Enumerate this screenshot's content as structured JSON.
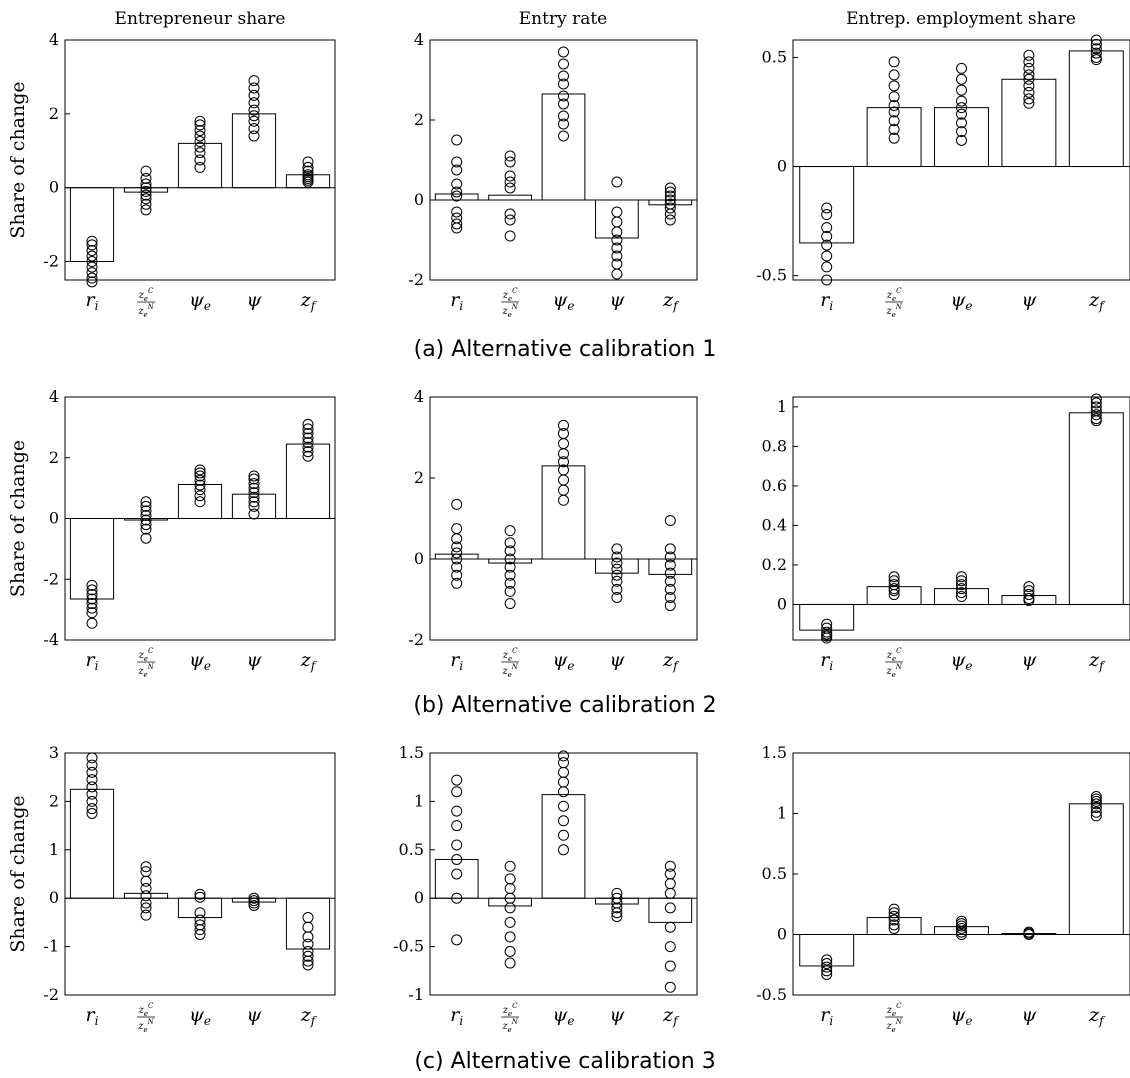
{
  "figure": {
    "column_titles": [
      "Entrepreneur share",
      "Entry rate",
      "Entrep. employment share"
    ],
    "ylabel": "Share of change",
    "captions": [
      "(a) Alternative calibration 1",
      "(b) Alternative calibration 2",
      "(c) Alternative calibration 3"
    ],
    "category_parts": [
      {
        "base": "r",
        "sub": "i"
      },
      {
        "num_base": "z",
        "num_sub": "e",
        "num_sup": "C",
        "den_base": "z",
        "den_sub": "e",
        "den_sup": "N"
      },
      {
        "base": "ψ",
        "sub": "e"
      },
      {
        "base": "ψ",
        "sub": ""
      },
      {
        "base": "z",
        "sub": "f"
      }
    ]
  },
  "chart_data": [
    {
      "type": "bar",
      "row": 0,
      "col": 0,
      "title": "Entrepreneur share",
      "ylabel": "Share of change",
      "categories": [
        "r_i",
        "z_e^C/z_e^N",
        "ψ_e",
        "ψ",
        "z_f"
      ],
      "values": [
        -2.0,
        -0.12,
        1.2,
        2.0,
        0.35
      ],
      "ylim": [
        -2.5,
        4
      ],
      "yticks": [
        -2,
        0,
        2,
        4
      ],
      "ytick_labels": [
        "-2",
        "0",
        "2",
        "4"
      ],
      "points": [
        [
          -1.45,
          -1.55,
          -1.7,
          -1.85,
          -2.0,
          -2.15,
          -2.3,
          -2.45,
          -2.55
        ],
        [
          0.45,
          0.25,
          0.1,
          0.0,
          -0.1,
          -0.2,
          -0.3,
          -0.45,
          -0.6
        ],
        [
          1.8,
          1.7,
          1.55,
          1.4,
          1.25,
          1.1,
          0.95,
          0.75,
          0.55
        ],
        [
          2.9,
          2.7,
          2.5,
          2.3,
          2.1,
          1.95,
          1.8,
          1.6,
          1.4
        ],
        [
          0.7,
          0.55,
          0.45,
          0.35,
          0.3,
          0.25,
          0.2,
          0.15
        ]
      ]
    },
    {
      "type": "bar",
      "row": 0,
      "col": 1,
      "title": "Entry rate",
      "ylabel": "",
      "categories": [
        "r_i",
        "z_e^C/z_e^N",
        "ψ_e",
        "ψ",
        "z_f"
      ],
      "values": [
        0.15,
        0.12,
        2.65,
        -0.95,
        -0.12
      ],
      "ylim": [
        -2,
        4
      ],
      "yticks": [
        -2,
        0,
        2,
        4
      ],
      "ytick_labels": [
        "-2",
        "0",
        "2",
        "4"
      ],
      "points": [
        [
          1.5,
          0.95,
          0.75,
          0.4,
          0.2,
          0.1,
          -0.3,
          -0.45,
          -0.6,
          -0.7
        ],
        [
          1.1,
          0.95,
          0.6,
          0.45,
          0.3,
          -0.35,
          -0.5,
          -0.9
        ],
        [
          3.7,
          3.4,
          3.1,
          2.9,
          2.6,
          2.4,
          2.1,
          1.9,
          1.6
        ],
        [
          0.45,
          -0.3,
          -0.55,
          -0.8,
          -1.0,
          -1.2,
          -1.4,
          -1.6,
          -1.85
        ],
        [
          0.3,
          0.2,
          0.1,
          0.0,
          -0.1,
          -0.2,
          -0.35,
          -0.5
        ]
      ]
    },
    {
      "type": "bar",
      "row": 0,
      "col": 2,
      "title": "Entrep. employment share",
      "ylabel": "",
      "categories": [
        "r_i",
        "z_e^C/z_e^N",
        "ψ_e",
        "ψ",
        "z_f"
      ],
      "values": [
        -0.35,
        0.27,
        0.27,
        0.4,
        0.53
      ],
      "ylim": [
        -0.52,
        0.58
      ],
      "yticks": [
        -0.5,
        0,
        0.5
      ],
      "ytick_labels": [
        "-0.5",
        "0",
        "0.5"
      ],
      "points": [
        [
          -0.19,
          -0.22,
          -0.28,
          -0.32,
          -0.36,
          -0.41,
          -0.46,
          -0.52
        ],
        [
          0.48,
          0.42,
          0.37,
          0.32,
          0.28,
          0.25,
          0.21,
          0.17,
          0.13
        ],
        [
          0.45,
          0.4,
          0.35,
          0.3,
          0.27,
          0.24,
          0.2,
          0.16,
          0.12
        ],
        [
          0.51,
          0.48,
          0.45,
          0.42,
          0.4,
          0.37,
          0.34,
          0.31,
          0.29
        ],
        [
          0.58,
          0.56,
          0.54,
          0.52,
          0.5,
          0.49
        ]
      ]
    },
    {
      "type": "bar",
      "row": 1,
      "col": 0,
      "title": "",
      "ylabel": "Share of change",
      "categories": [
        "r_i",
        "z_e^C/z_e^N",
        "ψ_e",
        "ψ",
        "z_f"
      ],
      "values": [
        -2.65,
        -0.05,
        1.12,
        0.8,
        2.45
      ],
      "ylim": [
        -4,
        4
      ],
      "yticks": [
        -4,
        -2,
        0,
        2,
        4
      ],
      "ytick_labels": [
        "-4",
        "-2",
        "0",
        "2",
        "4"
      ],
      "points": [
        [
          -2.2,
          -2.35,
          -2.5,
          -2.65,
          -2.8,
          -2.95,
          -3.1,
          -3.45
        ],
        [
          0.55,
          0.4,
          0.25,
          0.1,
          -0.05,
          -0.2,
          -0.35,
          -0.65
        ],
        [
          1.6,
          1.5,
          1.4,
          1.25,
          1.1,
          0.95,
          0.75,
          0.55
        ],
        [
          1.4,
          1.3,
          1.15,
          1.0,
          0.85,
          0.7,
          0.55,
          0.4,
          0.15
        ],
        [
          3.1,
          2.95,
          2.8,
          2.65,
          2.5,
          2.35,
          2.2,
          2.05
        ]
      ]
    },
    {
      "type": "bar",
      "row": 1,
      "col": 1,
      "title": "",
      "ylabel": "",
      "categories": [
        "r_i",
        "z_e^C/z_e^N",
        "ψ_e",
        "ψ",
        "z_f"
      ],
      "values": [
        0.12,
        -0.1,
        2.3,
        -0.35,
        -0.38
      ],
      "ylim": [
        -2,
        4
      ],
      "yticks": [
        -2,
        0,
        2,
        4
      ],
      "ytick_labels": [
        "-2",
        "0",
        "2",
        "4"
      ],
      "points": [
        [
          1.35,
          0.75,
          0.5,
          0.3,
          0.15,
          0.0,
          -0.2,
          -0.4,
          -0.6
        ],
        [
          0.7,
          0.4,
          0.2,
          0.0,
          -0.2,
          -0.4,
          -0.6,
          -0.8,
          -1.1
        ],
        [
          3.3,
          3.1,
          2.85,
          2.6,
          2.4,
          2.2,
          1.95,
          1.7,
          1.45
        ],
        [
          0.25,
          0.05,
          -0.1,
          -0.25,
          -0.4,
          -0.55,
          -0.75,
          -0.95
        ],
        [
          0.95,
          0.25,
          0.05,
          -0.15,
          -0.35,
          -0.55,
          -0.75,
          -0.95,
          -1.15
        ]
      ]
    },
    {
      "type": "bar",
      "row": 1,
      "col": 2,
      "title": "",
      "ylabel": "",
      "categories": [
        "r_i",
        "z_e^C/z_e^N",
        "ψ_e",
        "ψ",
        "z_f"
      ],
      "values": [
        -0.13,
        0.09,
        0.08,
        0.045,
        0.97
      ],
      "ylim": [
        -0.18,
        1.05
      ],
      "yticks": [
        0,
        0.2,
        0.4,
        0.6,
        0.8,
        1
      ],
      "ytick_labels": [
        "0",
        "0.2",
        "0.4",
        "0.6",
        "0.8",
        "1"
      ],
      "points": [
        [
          -0.1,
          -0.12,
          -0.14,
          -0.15,
          -0.16,
          -0.17
        ],
        [
          0.14,
          0.12,
          0.1,
          0.08,
          0.07,
          0.05
        ],
        [
          0.14,
          0.12,
          0.1,
          0.08,
          0.06,
          0.04
        ],
        [
          0.09,
          0.07,
          0.05,
          0.03,
          0.02
        ],
        [
          1.04,
          1.02,
          1.0,
          0.98,
          0.96,
          0.94,
          0.93
        ]
      ]
    },
    {
      "type": "bar",
      "row": 2,
      "col": 0,
      "title": "",
      "ylabel": "Share of change",
      "categories": [
        "r_i",
        "z_e^C/z_e^N",
        "ψ_e",
        "ψ",
        "z_f"
      ],
      "values": [
        2.25,
        0.1,
        -0.4,
        -0.08,
        -1.05
      ],
      "ylim": [
        -2,
        3
      ],
      "yticks": [
        -2,
        -1,
        0,
        1,
        2,
        3
      ],
      "ytick_labels": [
        "-2",
        "-1",
        "0",
        "1",
        "2",
        "3"
      ],
      "points": [
        [
          2.9,
          2.75,
          2.6,
          2.45,
          2.3,
          2.15,
          2.0,
          1.85,
          1.75
        ],
        [
          0.65,
          0.55,
          0.35,
          0.2,
          0.05,
          -0.1,
          -0.2,
          -0.35
        ],
        [
          0.08,
          0.02,
          -0.3,
          -0.45,
          -0.55,
          -0.65,
          -0.75
        ],
        [
          0.0,
          -0.05,
          -0.1,
          -0.15
        ],
        [
          -0.4,
          -0.6,
          -0.8,
          -0.95,
          -1.1,
          -1.2,
          -1.3,
          -1.38
        ]
      ]
    },
    {
      "type": "bar",
      "row": 2,
      "col": 1,
      "title": "",
      "ylabel": "",
      "categories": [
        "r_i",
        "z_e^C/z_e^N",
        "ψ_e",
        "ψ",
        "z_f"
      ],
      "values": [
        0.4,
        -0.08,
        1.07,
        -0.06,
        -0.25
      ],
      "ylim": [
        -1,
        1.5
      ],
      "yticks": [
        -1,
        -0.5,
        0,
        0.5,
        1,
        1.5
      ],
      "ytick_labels": [
        "-1",
        "-0.5",
        "0",
        "0.5",
        "1",
        "1.5"
      ],
      "points": [
        [
          1.22,
          1.1,
          0.9,
          0.75,
          0.55,
          0.4,
          0.25,
          0.0,
          -0.43
        ],
        [
          0.33,
          0.2,
          0.1,
          0.0,
          -0.1,
          -0.25,
          -0.4,
          -0.55,
          -0.67
        ],
        [
          1.47,
          1.4,
          1.3,
          1.2,
          1.1,
          0.95,
          0.8,
          0.65,
          0.5
        ],
        [
          0.05,
          0.0,
          -0.05,
          -0.1,
          -0.15,
          -0.19
        ],
        [
          0.33,
          0.25,
          0.15,
          0.05,
          -0.1,
          -0.3,
          -0.5,
          -0.7,
          -0.92
        ]
      ]
    },
    {
      "type": "bar",
      "row": 2,
      "col": 2,
      "title": "",
      "ylabel": "",
      "categories": [
        "r_i",
        "z_e^C/z_e^N",
        "ψ_e",
        "ψ",
        "z_f"
      ],
      "values": [
        -0.26,
        0.14,
        0.065,
        0.008,
        1.08
      ],
      "ylim": [
        -0.5,
        1.5
      ],
      "yticks": [
        -0.5,
        0,
        0.5,
        1,
        1.5
      ],
      "ytick_labels": [
        "-0.5",
        "0",
        "0.5",
        "1",
        "1.5"
      ],
      "points": [
        [
          -0.21,
          -0.24,
          -0.27,
          -0.3,
          -0.33
        ],
        [
          0.21,
          0.18,
          0.15,
          0.12,
          0.08,
          0.05
        ],
        [
          0.11,
          0.09,
          0.07,
          0.05,
          0.02,
          0.0
        ],
        [
          0.02,
          0.01,
          0.0
        ],
        [
          1.14,
          1.12,
          1.1,
          1.08,
          1.05,
          1.01,
          0.98
        ]
      ]
    }
  ]
}
